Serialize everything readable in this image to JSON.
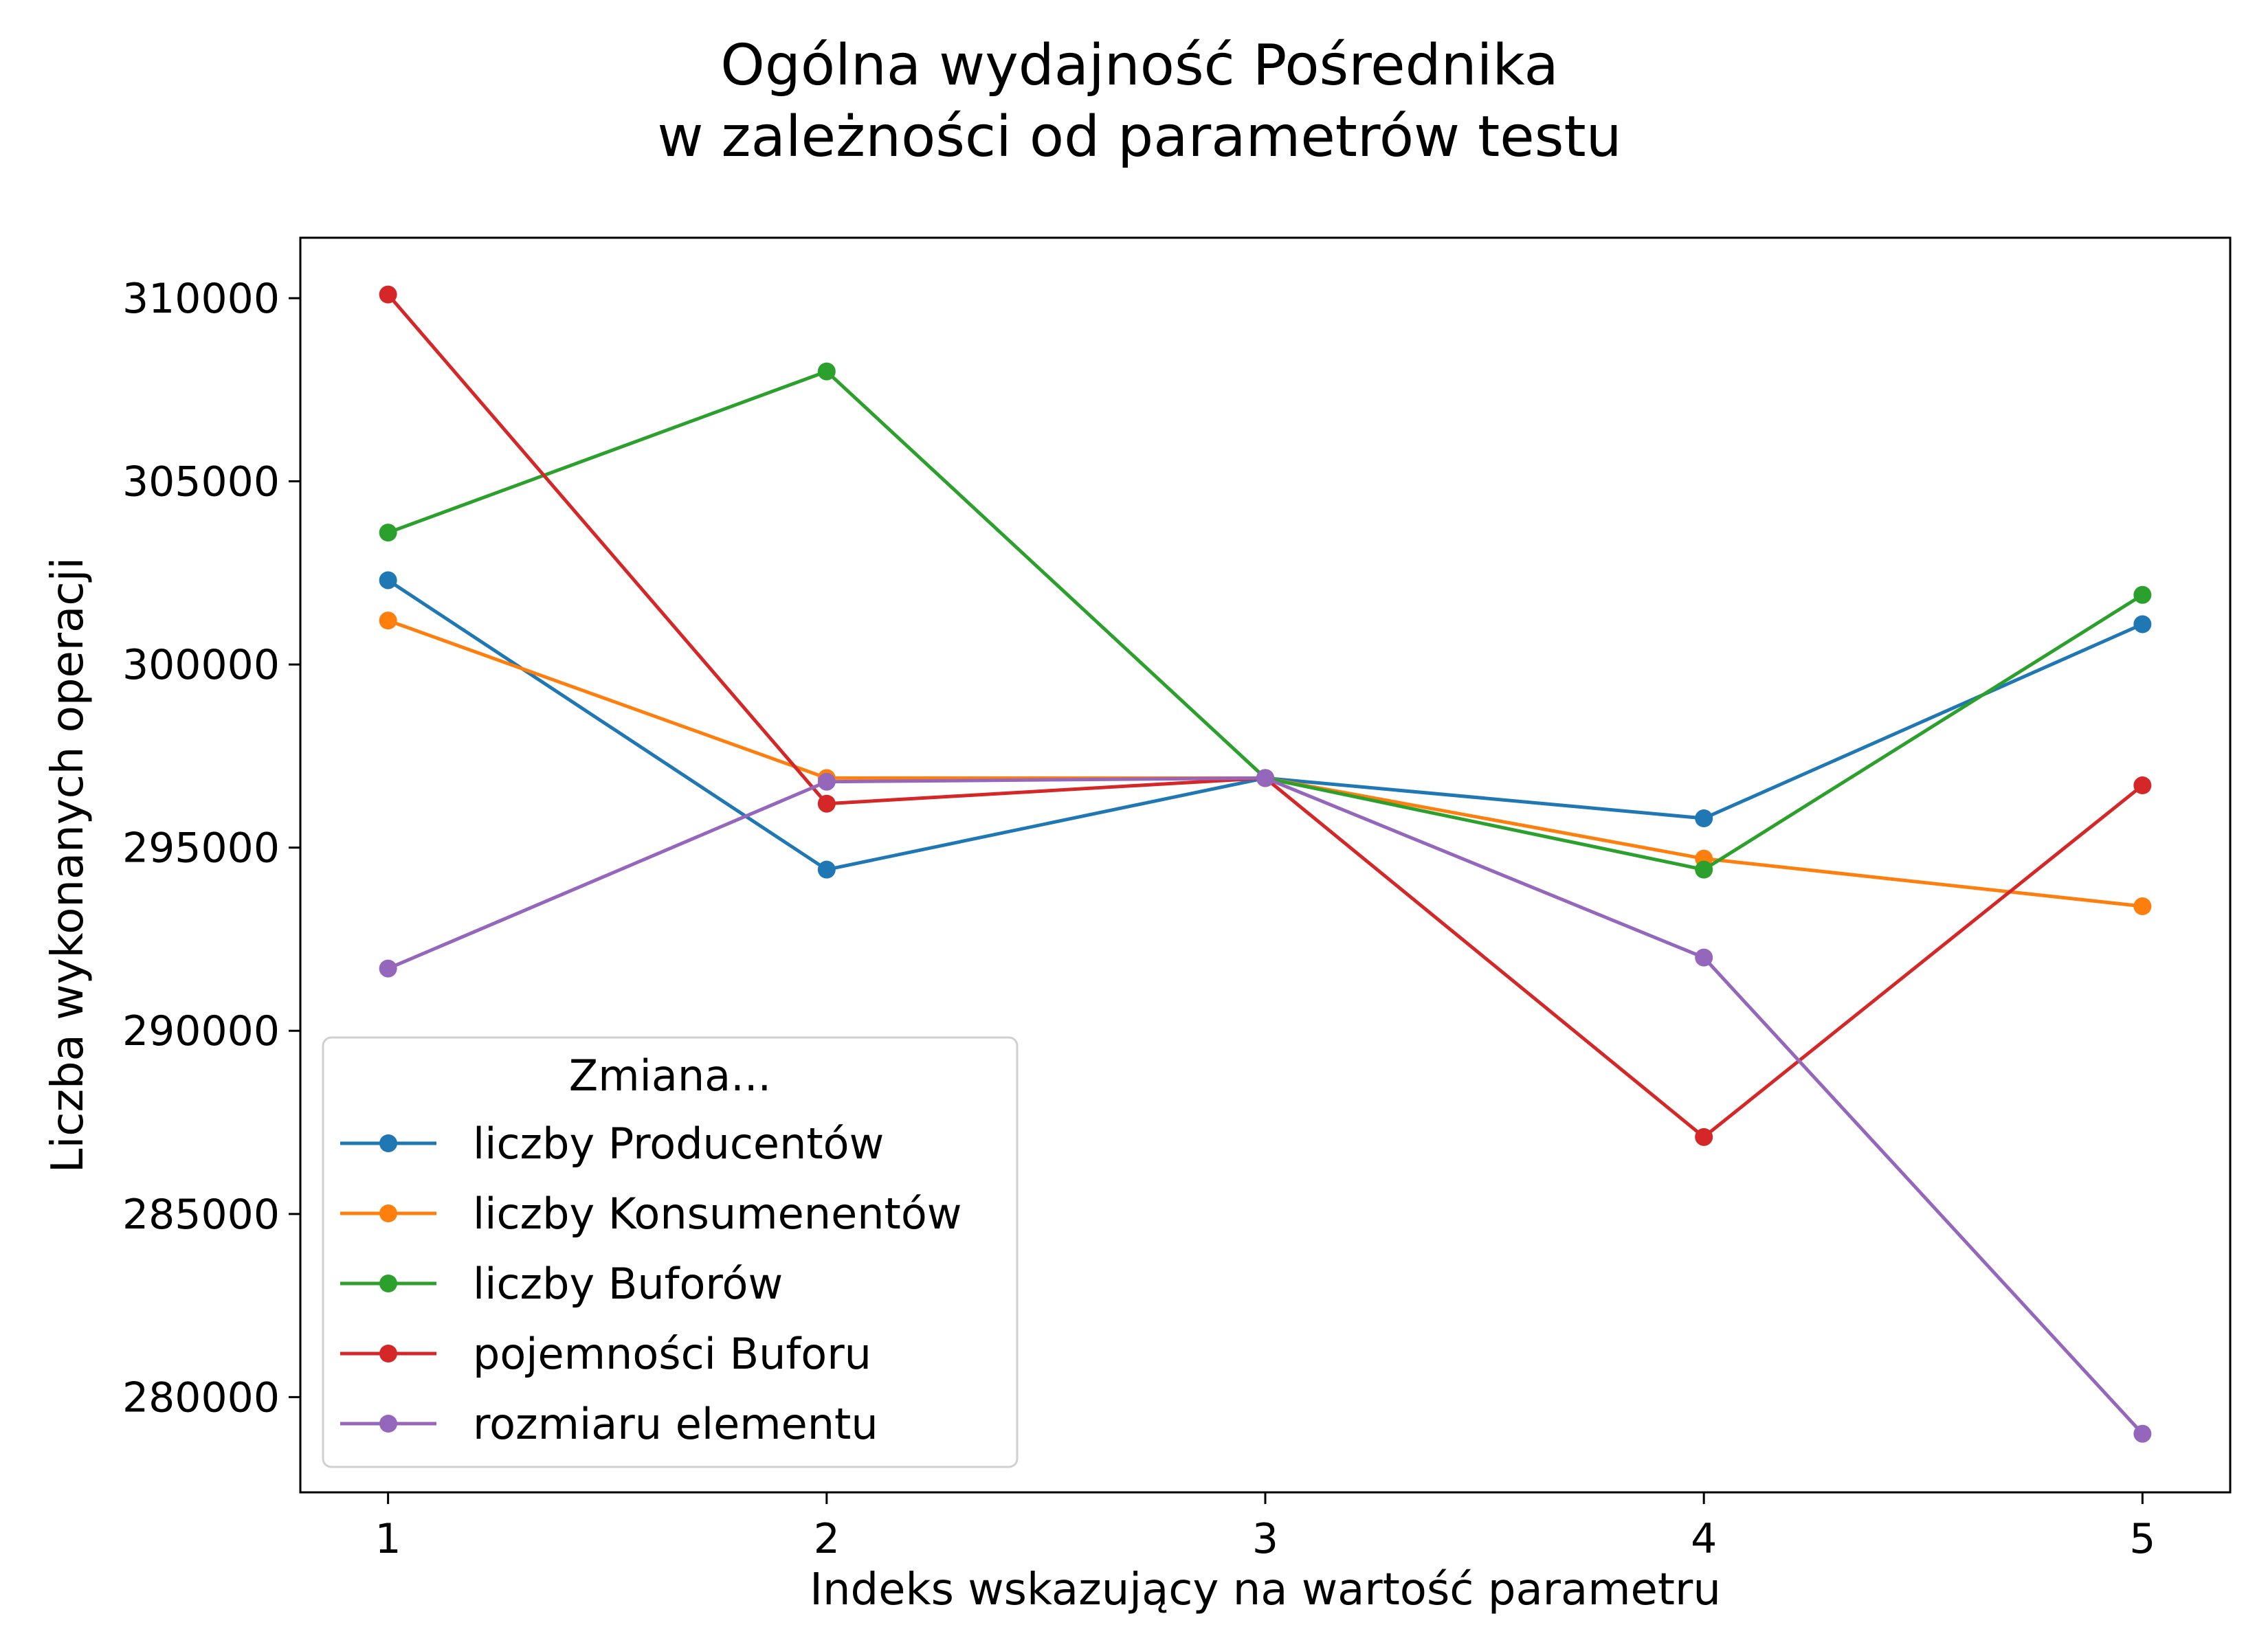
{
  "chart_data": {
    "type": "line",
    "title_lines": [
      "Ogólna wydajność Pośrednika",
      "w zależności od parametrów testu"
    ],
    "xlabel": "Indeks wskazujący na wartość parametru",
    "ylabel": "Liczba wykonanych operacji",
    "x": [
      1,
      2,
      3,
      4,
      5
    ],
    "x_ticks": [
      "1",
      "2",
      "3",
      "4",
      "5"
    ],
    "y_ticks": [
      280000,
      285000,
      290000,
      295000,
      300000,
      305000,
      310000
    ],
    "xlim": [
      0.8,
      5.2
    ],
    "ylim": [
      277400,
      311650
    ],
    "grid": false,
    "legend": {
      "title": "Zmiana...",
      "placement": "lower-left"
    },
    "series": [
      {
        "name": "liczby Producentów",
        "color": "#1f77b4",
        "values": [
          302300,
          294400,
          296900,
          295800,
          301100
        ]
      },
      {
        "name": "liczby Konsumenentów",
        "color": "#ff7f0e",
        "values": [
          301200,
          296900,
          296900,
          294700,
          293400
        ]
      },
      {
        "name": "liczby Buforów",
        "color": "#2ca02c",
        "values": [
          303600,
          308000,
          296900,
          294400,
          301900
        ]
      },
      {
        "name": "pojemności Buforu",
        "color": "#d62728",
        "values": [
          310100,
          296200,
          296900,
          287100,
          296700
        ]
      },
      {
        "name": "rozmiaru elementu",
        "color": "#9467bd",
        "values": [
          291700,
          296800,
          296900,
          292000,
          279000
        ]
      }
    ]
  }
}
